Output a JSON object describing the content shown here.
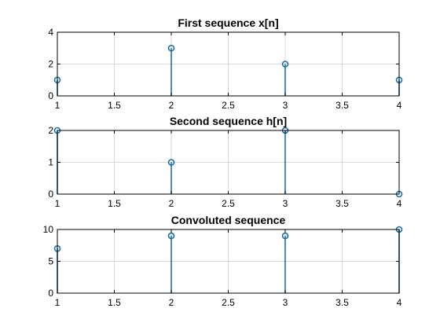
{
  "figure": {
    "background": "#ffffff",
    "grid_color": "#d9d9d9",
    "axis_color": "#000000",
    "stem_color": "#1f6fa6"
  },
  "chart_data": [
    {
      "type": "stem",
      "title": "First sequence x[n]",
      "xlabel": "",
      "ylabel": "",
      "x": [
        1,
        2,
        3,
        4
      ],
      "values": [
        1,
        3,
        2,
        1
      ],
      "xlim": [
        1,
        4
      ],
      "ylim": [
        0,
        4
      ],
      "xticks": [
        "1",
        "1.5",
        "2",
        "2.5",
        "3",
        "3.5",
        "4"
      ],
      "yticks": [
        "0",
        "2",
        "4"
      ],
      "grid": true,
      "marker": "circle"
    },
    {
      "type": "stem",
      "title": "Second sequence h[n]",
      "xlabel": "",
      "ylabel": "",
      "x": [
        1,
        2,
        3,
        4
      ],
      "values": [
        2,
        1,
        2,
        0
      ],
      "xlim": [
        1,
        4
      ],
      "ylim": [
        0,
        2
      ],
      "xticks": [
        "1",
        "1.5",
        "2",
        "2.5",
        "3",
        "3.5",
        "4"
      ],
      "yticks": [
        "0",
        "1",
        "2"
      ],
      "grid": true,
      "marker": "circle"
    },
    {
      "type": "stem",
      "title": "Convoluted sequence",
      "xlabel": "",
      "ylabel": "",
      "x": [
        1,
        2,
        3,
        4
      ],
      "values": [
        7,
        9,
        9,
        10
      ],
      "xlim": [
        1,
        4
      ],
      "ylim": [
        0,
        10
      ],
      "xticks": [
        "1",
        "1.5",
        "2",
        "2.5",
        "3",
        "3.5",
        "4"
      ],
      "yticks": [
        "0",
        "5",
        "10"
      ],
      "grid": true,
      "marker": "circle"
    }
  ]
}
